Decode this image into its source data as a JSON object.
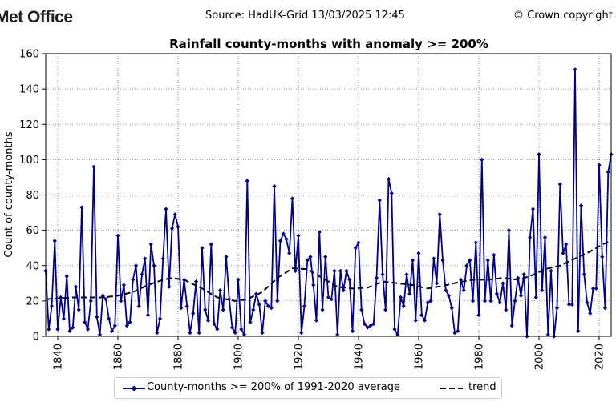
{
  "header": {
    "logo_text": "Met Office",
    "source": "Source: HadUK-Grid 13/03/2025 12:45",
    "copyright": "© Crown copyright"
  },
  "chart_data": {
    "type": "line",
    "title": "Rainfall county-months with anomaly >= 200%",
    "xlabel": "",
    "ylabel": "Count of county-months",
    "xlim": [
      1836,
      2024
    ],
    "ylim": [
      0,
      160
    ],
    "x_ticks": [
      1840,
      1860,
      1880,
      1900,
      1920,
      1940,
      1960,
      1980,
      2000,
      2020
    ],
    "y_ticks": [
      0,
      20,
      40,
      60,
      80,
      100,
      120,
      140,
      160
    ],
    "grid": true,
    "legend_position": "bottom",
    "colors": {
      "series": "#00008b",
      "trend": "#000000"
    },
    "series": [
      {
        "name": "County-months >= 200% of 1991-2020 average",
        "style": "line-marker",
        "x_start": 1836,
        "values": [
          37,
          4,
          17,
          54,
          4,
          22,
          10,
          34,
          3,
          5,
          28,
          15,
          73,
          8,
          4,
          20,
          96,
          11,
          1,
          23,
          21,
          10,
          3,
          6,
          57,
          20,
          29,
          6,
          8,
          32,
          40,
          17,
          35,
          44,
          12,
          52,
          40,
          2,
          10,
          44,
          72,
          28,
          61,
          69,
          62,
          16,
          32,
          17,
          2,
          13,
          31,
          2,
          50,
          15,
          9,
          52,
          7,
          4,
          26,
          15,
          45,
          21,
          5,
          2,
          32,
          4,
          1,
          88,
          8,
          15,
          24,
          18,
          2,
          20,
          17,
          16,
          85,
          20,
          54,
          58,
          55,
          47,
          78,
          37,
          57,
          2,
          17,
          43,
          45,
          29,
          9,
          59,
          15,
          45,
          22,
          21,
          37,
          1,
          37,
          26,
          37,
          32,
          3,
          50,
          53,
          15,
          7,
          5,
          6,
          7,
          33,
          77,
          35,
          15,
          89,
          81,
          4,
          1,
          22,
          17,
          35,
          24,
          43,
          9,
          47,
          12,
          9,
          19,
          20,
          44,
          30,
          69,
          43,
          26,
          23,
          16,
          2,
          3,
          32,
          26,
          40,
          43,
          20,
          53,
          12,
          100,
          20,
          43,
          20,
          46,
          24,
          19,
          30,
          15,
          60,
          6,
          20,
          33,
          23,
          35,
          0,
          56,
          72,
          22,
          103,
          26,
          56,
          1,
          37,
          0,
          16,
          86,
          47,
          52,
          18,
          18,
          151,
          3,
          74,
          35,
          19,
          13,
          27,
          27,
          97,
          45,
          16,
          93,
          103
        ]
      },
      {
        "name": "trend",
        "style": "dashed",
        "x": [
          1836,
          1845,
          1855,
          1860,
          1865,
          1870,
          1875,
          1878,
          1882,
          1888,
          1893,
          1899,
          1903,
          1908,
          1913,
          1918,
          1923,
          1928,
          1933,
          1938,
          1943,
          1948,
          1953,
          1958,
          1963,
          1968,
          1973,
          1978,
          1983,
          1988,
          1993,
          1997,
          2002,
          2007,
          2012,
          2017,
          2021,
          2024
        ],
        "values": [
          21,
          22,
          22,
          23,
          25,
          29,
          32,
          33,
          32,
          27,
          22,
          20,
          21,
          25,
          33,
          38.5,
          38,
          33,
          28,
          27,
          27.5,
          31,
          30,
          29,
          27,
          28.5,
          30.5,
          32,
          32,
          33,
          32,
          34,
          38,
          40,
          44,
          48,
          52,
          54
        ]
      }
    ]
  }
}
